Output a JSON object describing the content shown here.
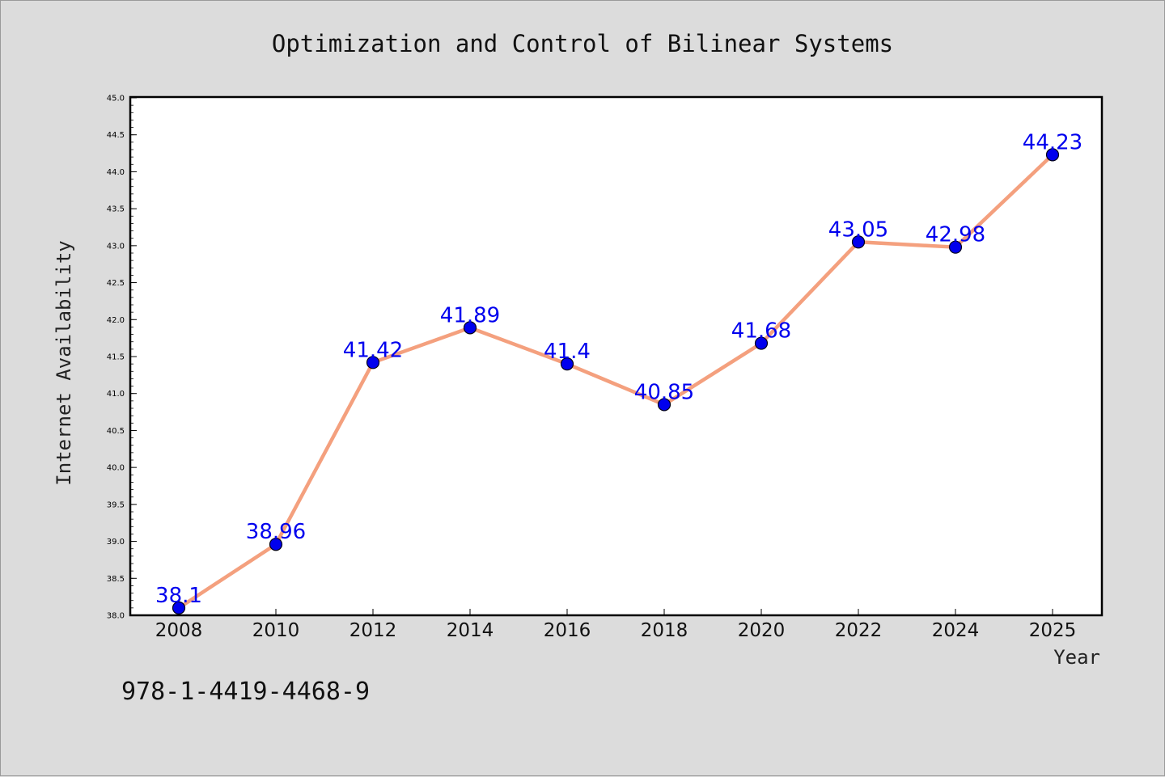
{
  "chart_data": {
    "type": "line",
    "title": "Optimization and Control of Bilinear Systems",
    "xlabel": "Year",
    "ylabel": "Internet Availability",
    "x": [
      "2008",
      "2010",
      "2012",
      "2014",
      "2016",
      "2018",
      "2020",
      "2022",
      "2024",
      "2025"
    ],
    "values": [
      38.1,
      38.96,
      41.42,
      41.89,
      41.4,
      40.85,
      41.68,
      43.05,
      42.98,
      44.23
    ],
    "data_labels": [
      "38.1",
      "38.96",
      "41.42",
      "41.89",
      "41.4",
      "40.85",
      "41.68",
      "43.05",
      "42.98",
      "44.23"
    ],
    "ylim": [
      38.0,
      45.0
    ],
    "y_ticks": [
      "38.0",
      "38.5",
      "39.0",
      "39.5",
      "40.0",
      "40.5",
      "41.0",
      "41.5",
      "42.0",
      "42.5",
      "43.0",
      "43.5",
      "44.0",
      "44.5",
      "45.0"
    ],
    "grid": false,
    "line_color": "#f4a07e",
    "marker_color": "#0000ee",
    "label_color": "#0000ee",
    "plot_background": "#ffffff"
  },
  "footer": {
    "isbn": "978-1-4419-4468-9"
  }
}
